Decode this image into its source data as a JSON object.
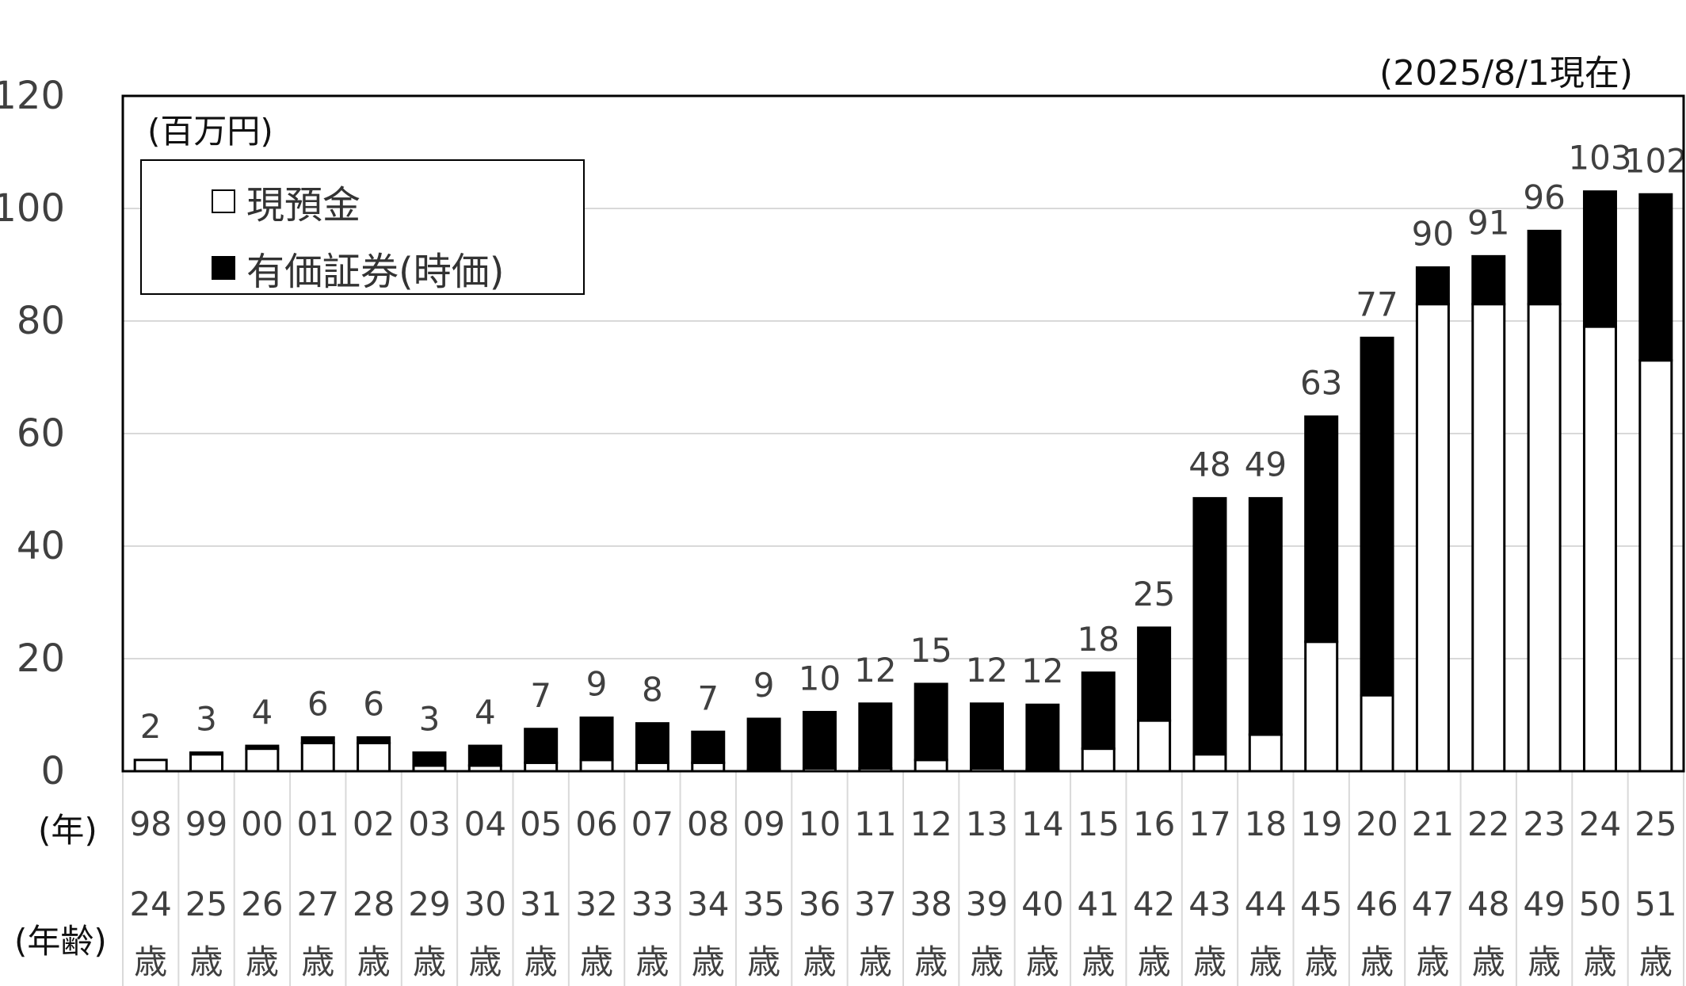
{
  "date_note": "(2025/8/1現在)",
  "unit_label": "(百万円)",
  "legend": {
    "cash_label": "現預金",
    "securities_label": "有価証券(時価)"
  },
  "row_labels": {
    "year": "(年)",
    "age": "(年齢)"
  },
  "colors": {
    "securities": "#000000",
    "cash": "#ffffff",
    "grid": "#d9d9d9",
    "text": "#404040"
  },
  "chart_data": {
    "type": "bar",
    "stacked": true,
    "categories": [
      "98",
      "99",
      "00",
      "01",
      "02",
      "03",
      "04",
      "05",
      "06",
      "07",
      "08",
      "09",
      "10",
      "11",
      "12",
      "13",
      "14",
      "15",
      "16",
      "17",
      "18",
      "19",
      "20",
      "21",
      "22",
      "23",
      "24",
      "25"
    ],
    "ages": [
      "24",
      "25",
      "26",
      "27",
      "28",
      "29",
      "30",
      "31",
      "32",
      "33",
      "34",
      "35",
      "36",
      "37",
      "38",
      "39",
      "40",
      "41",
      "42",
      "43",
      "44",
      "45",
      "46",
      "47",
      "48",
      "49",
      "50",
      "51"
    ],
    "age_suffix": "歳",
    "series": [
      {
        "name": "現預金",
        "values": [
          2,
          3,
          4,
          5,
          5,
          1,
          1,
          1.5,
          2,
          1.5,
          1.5,
          0.3,
          0.5,
          0.5,
          2,
          0.5,
          0.3,
          4,
          9,
          3,
          6.5,
          23,
          13.5,
          83,
          83,
          83,
          79,
          73
        ]
      },
      {
        "name": "有価証券(時価)",
        "values": [
          0,
          0.3,
          0.5,
          1,
          1,
          2.3,
          3.5,
          6,
          7.5,
          7,
          5.5,
          9,
          10,
          11.5,
          13.5,
          11.5,
          11.5,
          13.5,
          16.5,
          45.5,
          42,
          40,
          63.5,
          6.5,
          8.5,
          13,
          24,
          29.5
        ]
      }
    ],
    "totals": [
      "2",
      "3",
      "4",
      "6",
      "6",
      "3",
      "4",
      "7",
      "9",
      "8",
      "7",
      "9",
      "10",
      "12",
      "15",
      "12",
      "12",
      "18",
      "25",
      "48",
      "49",
      "63",
      "77",
      "90",
      "91",
      "96",
      "103",
      "102"
    ],
    "ylim": [
      0,
      120
    ],
    "yticks": [
      "0",
      "20",
      "40",
      "60",
      "80",
      "100",
      "120"
    ],
    "grid": true,
    "legend_position": "top-left"
  }
}
